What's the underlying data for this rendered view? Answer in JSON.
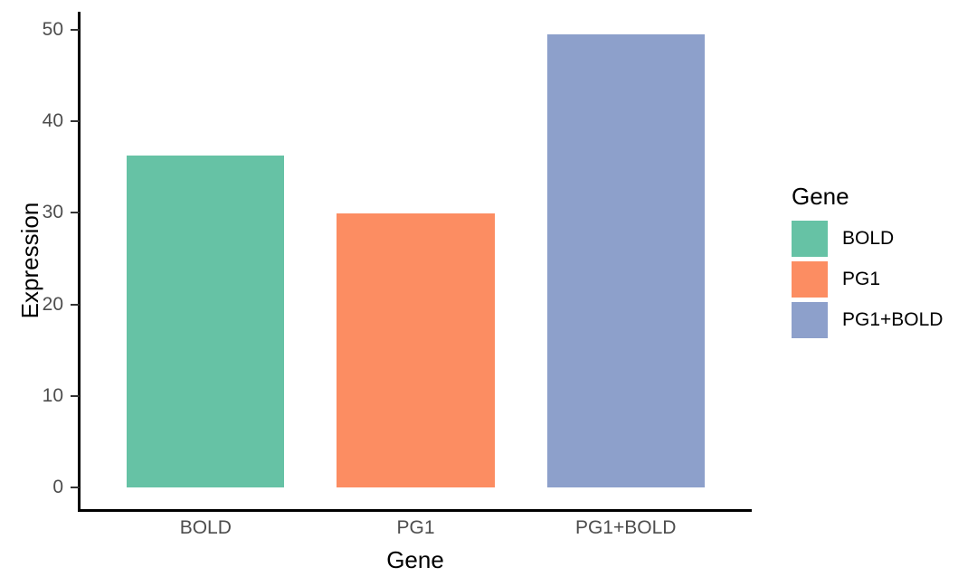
{
  "chart_data": {
    "type": "bar",
    "categories": [
      "BOLD",
      "PG1",
      "PG1+BOLD"
    ],
    "values": [
      36.3,
      29.9,
      49.5
    ],
    "bar_colors": [
      "#66C2A5",
      "#FC8D62",
      "#8DA0CB"
    ],
    "xlabel": "Gene",
    "ylabel": "Expression",
    "ylim": [
      -2.5,
      52
    ],
    "yticks": [
      0,
      10,
      20,
      30,
      40,
      50
    ],
    "grid": false,
    "legend": {
      "title": "Gene",
      "position": "right",
      "entries": [
        {
          "label": "BOLD",
          "color": "#66C2A5"
        },
        {
          "label": "PG1",
          "color": "#FC8D62"
        },
        {
          "label": "PG1+BOLD",
          "color": "#8DA0CB"
        }
      ]
    },
    "colors": {
      "axis_line": "#000000",
      "tick_mark": "#333333",
      "tick_label": "#4D4D4D",
      "axis_title": "#000000",
      "background": "#FFFFFF"
    }
  }
}
